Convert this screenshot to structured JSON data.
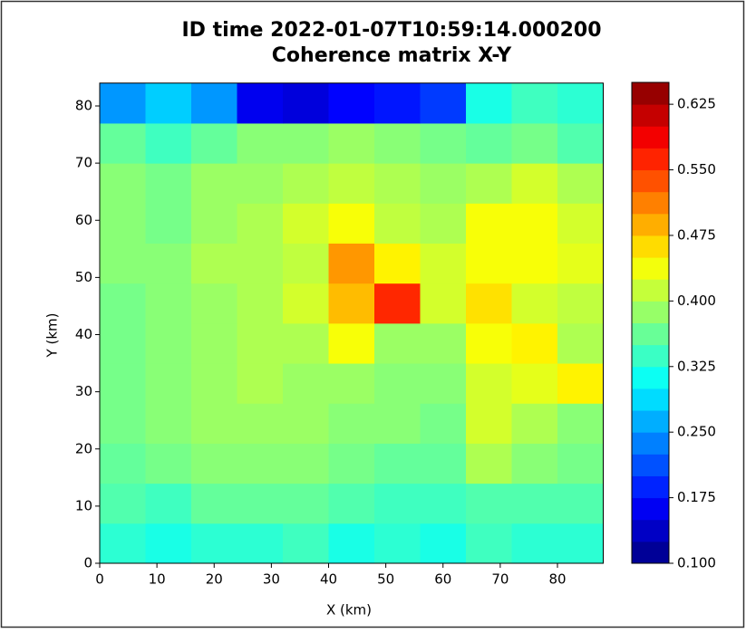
{
  "chart_data": {
    "type": "heatmap",
    "title": "ID time 2022-01-07T10:59:14.000200",
    "subtitle": "Coherence matrix X-Y",
    "x_label": "X (km)",
    "y_label": "Y (km)",
    "colormap": "jet",
    "xbins": [
      0,
      8,
      16,
      24,
      32,
      40,
      48,
      56,
      64,
      72,
      80,
      88
    ],
    "ybins": [
      0,
      7,
      14,
      21,
      28,
      35,
      42,
      49,
      56,
      63,
      70,
      77,
      84
    ],
    "z": [
      [
        0.33,
        0.32,
        0.33,
        0.33,
        0.34,
        0.32,
        0.33,
        0.32,
        0.34,
        0.33,
        0.33
      ],
      [
        0.35,
        0.34,
        0.36,
        0.36,
        0.36,
        0.35,
        0.34,
        0.34,
        0.35,
        0.35,
        0.35
      ],
      [
        0.36,
        0.37,
        0.38,
        0.38,
        0.38,
        0.37,
        0.36,
        0.36,
        0.4,
        0.38,
        0.37
      ],
      [
        0.37,
        0.38,
        0.39,
        0.39,
        0.39,
        0.38,
        0.38,
        0.37,
        0.42,
        0.4,
        0.38
      ],
      [
        0.37,
        0.38,
        0.39,
        0.4,
        0.39,
        0.39,
        0.38,
        0.38,
        0.42,
        0.43,
        0.45
      ],
      [
        0.37,
        0.38,
        0.39,
        0.4,
        0.4,
        0.44,
        0.39,
        0.39,
        0.44,
        0.45,
        0.4
      ],
      [
        0.37,
        0.38,
        0.39,
        0.4,
        0.42,
        0.48,
        0.56,
        0.42,
        0.46,
        0.42,
        0.41
      ],
      [
        0.38,
        0.38,
        0.4,
        0.4,
        0.41,
        0.5,
        0.45,
        0.42,
        0.44,
        0.44,
        0.43
      ],
      [
        0.38,
        0.37,
        0.39,
        0.4,
        0.42,
        0.44,
        0.41,
        0.4,
        0.44,
        0.44,
        0.42
      ],
      [
        0.38,
        0.37,
        0.39,
        0.39,
        0.4,
        0.41,
        0.4,
        0.39,
        0.4,
        0.42,
        0.4
      ],
      [
        0.36,
        0.34,
        0.36,
        0.38,
        0.38,
        0.39,
        0.38,
        0.37,
        0.36,
        0.37,
        0.35
      ],
      [
        0.25,
        0.28,
        0.25,
        0.16,
        0.15,
        0.17,
        0.18,
        0.2,
        0.32,
        0.34,
        0.33
      ]
    ],
    "xlim": [
      0,
      88
    ],
    "ylim": [
      0,
      84
    ],
    "xticks": [
      0,
      10,
      20,
      30,
      40,
      50,
      60,
      70,
      80
    ],
    "yticks": [
      0,
      10,
      20,
      30,
      40,
      50,
      60,
      70,
      80
    ],
    "clim": [
      0.1,
      0.65
    ],
    "cticks": [
      {
        "value": 0.1,
        "label": "0.100"
      },
      {
        "value": 0.175,
        "label": "0.175"
      },
      {
        "value": 0.25,
        "label": "0.250"
      },
      {
        "value": 0.325,
        "label": "0.325"
      },
      {
        "value": 0.4,
        "label": "0.400"
      },
      {
        "value": 0.475,
        "label": "0.475"
      },
      {
        "value": 0.55,
        "label": "0.550"
      },
      {
        "value": 0.625,
        "label": "0.625"
      }
    ]
  }
}
